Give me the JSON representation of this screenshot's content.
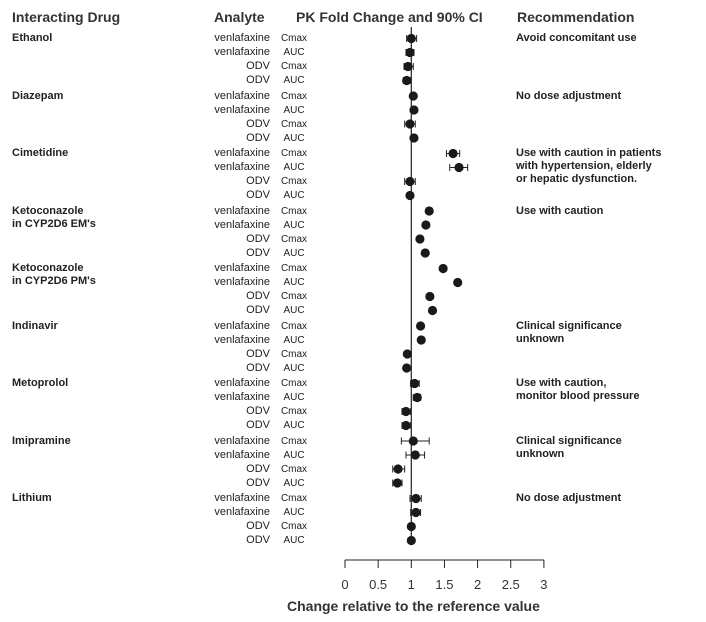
{
  "headers": {
    "drug": "Interacting Drug",
    "analyte": "Analyte",
    "pk": "PK Fold Change and 90% CI",
    "recommendation": "Recommendation"
  },
  "chart_data": {
    "type": "forest",
    "xlabel": "Change relative to the reference value",
    "xlim": [
      0,
      3
    ],
    "xticks": [
      "0",
      "0.5",
      "1",
      "1.5",
      "2",
      "2.5",
      "3"
    ],
    "reference_line": 1,
    "groups": [
      {
        "drug": [
          "Ethanol"
        ],
        "recommendation": [
          "Avoid concomitant use"
        ],
        "rows": [
          {
            "analyte": "venlafaxine",
            "param": "Cmax",
            "value": 1.0,
            "ci": [
              0.93,
              1.08
            ]
          },
          {
            "analyte": "venlafaxine",
            "param": "AUC",
            "value": 0.98,
            "ci": [
              0.92,
              1.04
            ]
          },
          {
            "analyte": "ODV",
            "param": "Cmax",
            "value": 0.95,
            "ci": [
              0.89,
              1.03
            ]
          },
          {
            "analyte": "ODV",
            "param": "AUC",
            "value": 0.93,
            "ci": [
              0.88,
              0.99
            ]
          }
        ]
      },
      {
        "drug": [
          "Diazepam"
        ],
        "recommendation": [
          "No dose adjustment"
        ],
        "rows": [
          {
            "analyte": "venlafaxine",
            "param": "Cmax",
            "value": 1.03,
            "ci": [
              1.0,
              1.06
            ]
          },
          {
            "analyte": "venlafaxine",
            "param": "AUC",
            "value": 1.04,
            "ci": [
              1.01,
              1.07
            ]
          },
          {
            "analyte": "ODV",
            "param": "Cmax",
            "value": 0.98,
            "ci": [
              0.9,
              1.06
            ]
          },
          {
            "analyte": "ODV",
            "param": "AUC",
            "value": 1.04,
            "ci": [
              1.01,
              1.07
            ]
          }
        ]
      },
      {
        "drug": [
          "Cimetidine"
        ],
        "recommendation": [
          "Use with caution in patients",
          "with hypertension, elderly",
          "or hepatic dysfunction."
        ],
        "rows": [
          {
            "analyte": "venlafaxine",
            "param": "Cmax",
            "value": 1.63,
            "ci": [
              1.53,
              1.73
            ]
          },
          {
            "analyte": "venlafaxine",
            "param": "AUC",
            "value": 1.72,
            "ci": [
              1.58,
              1.85
            ]
          },
          {
            "analyte": "ODV",
            "param": "Cmax",
            "value": 0.98,
            "ci": [
              0.9,
              1.06
            ]
          },
          {
            "analyte": "ODV",
            "param": "AUC",
            "value": 0.98,
            "ci": [
              0.95,
              1.01
            ]
          }
        ]
      },
      {
        "drug": [
          "Ketoconazole",
          "in CYP2D6 EM's"
        ],
        "recommendation": [
          "Use with caution"
        ],
        "rows": [
          {
            "analyte": "venlafaxine",
            "param": "Cmax",
            "value": 1.27,
            "ci": [
              1.24,
              1.3
            ]
          },
          {
            "analyte": "venlafaxine",
            "param": "AUC",
            "value": 1.22,
            "ci": [
              1.19,
              1.25
            ]
          },
          {
            "analyte": "ODV",
            "param": "Cmax",
            "value": 1.13,
            "ci": [
              1.1,
              1.16
            ]
          },
          {
            "analyte": "ODV",
            "param": "AUC",
            "value": 1.21,
            "ci": [
              1.18,
              1.24
            ]
          }
        ]
      },
      {
        "drug": [
          "Ketoconazole",
          "in CYP2D6 PM's"
        ],
        "recommendation": [],
        "rows": [
          {
            "analyte": "venlafaxine",
            "param": "Cmax",
            "value": 1.48,
            "ci": [
              1.45,
              1.51
            ]
          },
          {
            "analyte": "venlafaxine",
            "param": "AUC",
            "value": 1.7,
            "ci": [
              1.67,
              1.73
            ]
          },
          {
            "analyte": "ODV",
            "param": "Cmax",
            "value": 1.28,
            "ci": [
              1.25,
              1.31
            ]
          },
          {
            "analyte": "ODV",
            "param": "AUC",
            "value": 1.32,
            "ci": [
              1.29,
              1.35
            ]
          }
        ]
      },
      {
        "drug": [
          "Indinavir"
        ],
        "recommendation": [
          "Clinical significance",
          "unknown"
        ],
        "rows": [
          {
            "analyte": "venlafaxine",
            "param": "Cmax",
            "value": 1.14,
            "ci": [
              1.11,
              1.17
            ]
          },
          {
            "analyte": "venlafaxine",
            "param": "AUC",
            "value": 1.15,
            "ci": [
              1.12,
              1.18
            ]
          },
          {
            "analyte": "ODV",
            "param": "Cmax",
            "value": 0.94,
            "ci": [
              0.91,
              0.97
            ]
          },
          {
            "analyte": "ODV",
            "param": "AUC",
            "value": 0.93,
            "ci": [
              0.9,
              0.96
            ]
          }
        ]
      },
      {
        "drug": [
          "Metoprolol"
        ],
        "recommendation": [
          "Use with caution,",
          "monitor blood pressure"
        ],
        "rows": [
          {
            "analyte": "venlafaxine",
            "param": "Cmax",
            "value": 1.05,
            "ci": [
              0.99,
              1.12
            ]
          },
          {
            "analyte": "venlafaxine",
            "param": "AUC",
            "value": 1.09,
            "ci": [
              1.03,
              1.14
            ]
          },
          {
            "analyte": "ODV",
            "param": "Cmax",
            "value": 0.92,
            "ci": [
              0.86,
              0.99
            ]
          },
          {
            "analyte": "ODV",
            "param": "AUC",
            "value": 0.92,
            "ci": [
              0.86,
              0.99
            ]
          }
        ]
      },
      {
        "drug": [
          "Imipramine"
        ],
        "recommendation": [
          "Clinical significance",
          "unknown"
        ],
        "rows": [
          {
            "analyte": "venlafaxine",
            "param": "Cmax",
            "value": 1.03,
            "ci": [
              0.85,
              1.27
            ]
          },
          {
            "analyte": "venlafaxine",
            "param": "AUC",
            "value": 1.06,
            "ci": [
              0.92,
              1.2
            ]
          },
          {
            "analyte": "ODV",
            "param": "Cmax",
            "value": 0.8,
            "ci": [
              0.72,
              0.9
            ]
          },
          {
            "analyte": "ODV",
            "param": "AUC",
            "value": 0.79,
            "ci": [
              0.72,
              0.86
            ]
          }
        ]
      },
      {
        "drug": [
          "Lithium"
        ],
        "recommendation": [
          "No dose adjustment"
        ],
        "rows": [
          {
            "analyte": "venlafaxine",
            "param": "Cmax",
            "value": 1.07,
            "ci": [
              0.98,
              1.15
            ]
          },
          {
            "analyte": "venlafaxine",
            "param": "AUC",
            "value": 1.07,
            "ci": [
              0.99,
              1.14
            ]
          },
          {
            "analyte": "ODV",
            "param": "Cmax",
            "value": 1.0,
            "ci": [
              0.97,
              1.03
            ]
          },
          {
            "analyte": "ODV",
            "param": "AUC",
            "value": 1.0,
            "ci": [
              0.97,
              1.03
            ]
          }
        ]
      }
    ]
  }
}
